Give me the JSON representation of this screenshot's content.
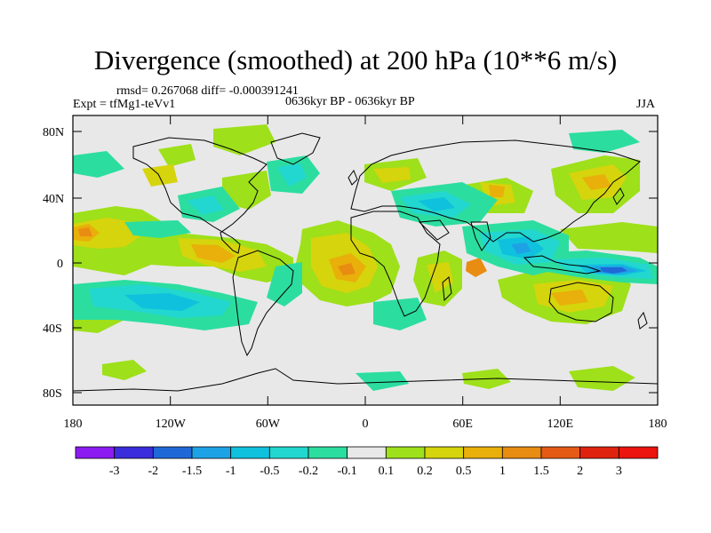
{
  "title": "Divergence (smoothed) at 200 hPa (10**6 m/s)",
  "stats": {
    "rmsd_text": "rmsd= 0.267068 diff= -0.000391241"
  },
  "experiment": "Expt = tfMg1-teVv1",
  "period": "0636kyr BP - 0636kyr BP",
  "season": "JJA",
  "lat_ticks": [
    "80N",
    "40N",
    "0",
    "40S",
    "80S"
  ],
  "lon_ticks": [
    "180",
    "120W",
    "60W",
    "0",
    "60E",
    "120E",
    "180"
  ],
  "colorbar": {
    "labels": [
      "-3",
      "-2",
      "-1.5",
      "-1",
      "-0.5",
      "-0.2",
      "-0.1",
      "0.1",
      "0.2",
      "0.5",
      "1",
      "1.5",
      "2",
      "3"
    ],
    "colors": [
      "#8c1bf2",
      "#3a2ddc",
      "#1f68d8",
      "#1ea2e6",
      "#10c1de",
      "#22d7cf",
      "#2cdda0",
      "#e8e8e8",
      "#9ee01a",
      "#d6d40c",
      "#e9af0a",
      "#e88c12",
      "#e55b15",
      "#e0230f",
      "#eb140e"
    ]
  },
  "map_colors": {
    "background": "#e8e8e8",
    "pos_weak": "#9ee01a",
    "pos_mid": "#d6d40c",
    "pos_strong": "#e9af0a",
    "pos_very": "#e88c12",
    "neg_weak": "#2cdda0",
    "neg_mid": "#22d7cf",
    "neg_strong": "#10c1de",
    "neg_very": "#1ea2e6",
    "neg_max": "#1f68d8"
  }
}
